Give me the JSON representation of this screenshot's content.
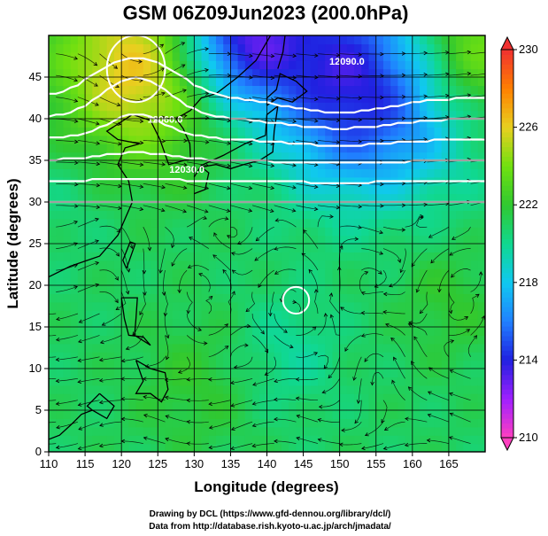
{
  "chart_data": {
    "type": "heatmap",
    "title": "GSM 06Z09Jun2023 (200.0hPa)",
    "xlabel": "Longitude (degrees)",
    "ylabel": "Latitude  (degrees)",
    "xlim": [
      110,
      170
    ],
    "ylim": [
      0,
      50
    ],
    "x_ticks": [
      110,
      115,
      120,
      125,
      130,
      135,
      140,
      145,
      150,
      155,
      160,
      165
    ],
    "y_ticks": [
      0,
      5,
      10,
      15,
      20,
      25,
      30,
      35,
      40,
      45
    ],
    "grid": true,
    "colorbar": {
      "range": [
        210,
        230
      ],
      "tick_values": [
        210,
        214,
        218,
        222,
        226,
        230
      ],
      "tick_labels": [
        "210",
        "214",
        "218",
        "222",
        "226",
        "230"
      ],
      "stops": [
        {
          "value": 210,
          "color": "#ff40c0"
        },
        {
          "value": 212,
          "color": "#a020ff"
        },
        {
          "value": 214,
          "color": "#2020e0"
        },
        {
          "value": 216,
          "color": "#2080ff"
        },
        {
          "value": 218,
          "color": "#10c8f0"
        },
        {
          "value": 220,
          "color": "#10d890"
        },
        {
          "value": 222,
          "color": "#30c830"
        },
        {
          "value": 224,
          "color": "#70e010"
        },
        {
          "value": 226,
          "color": "#e8d020"
        },
        {
          "value": 228,
          "color": "#ff8000"
        },
        {
          "value": 230,
          "color": "#f03030"
        }
      ]
    },
    "temperature_field": {
      "base": 221,
      "features": [
        {
          "lon": 122,
          "lat": 46,
          "amp": 5.5,
          "spread": 8
        },
        {
          "lon": 168,
          "lat": 48,
          "amp": 3.5,
          "spread": 6
        },
        {
          "lon": 150,
          "lat": 47,
          "amp": -6,
          "spread": 8
        },
        {
          "lon": 136,
          "lat": 50,
          "amp": -7,
          "spread": 6
        },
        {
          "lon": 160,
          "lat": 40,
          "amp": -3,
          "spread": 7
        },
        {
          "lon": 150,
          "lat": 36,
          "amp": -1.5,
          "spread": 6
        },
        {
          "lon": 113,
          "lat": 33,
          "amp": -0.8,
          "spread": 6
        },
        {
          "lon": 143,
          "lat": 12,
          "amp": -1.2,
          "spread": 5
        },
        {
          "lon": 165,
          "lat": 18,
          "amp": 1,
          "spread": 5
        },
        {
          "lon": 130,
          "lat": 8,
          "amp": 1,
          "spread": 6
        }
      ]
    },
    "contours": [
      {
        "label": "12090.0",
        "lon": 151,
        "lat": 46.5
      },
      {
        "label": "12060.0",
        "lon": 126,
        "lat": 39.5
      },
      {
        "label": "12030.0",
        "lon": 129,
        "lat": 33.5
      }
    ],
    "footer": [
      "Drawing by DCL (https://www.gfd-dennou.org/library/dcl/)",
      "Data from http://database.rish.kyoto-u.ac.jp/arch/jmadata/"
    ]
  }
}
